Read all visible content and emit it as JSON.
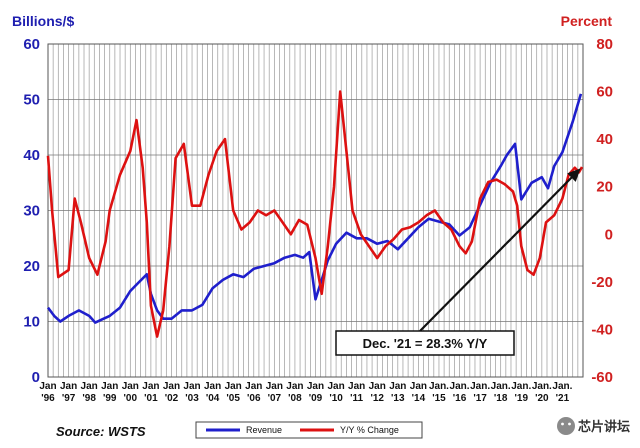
{
  "chart_data": {
    "type": "line",
    "title": "",
    "ylabel_left": "Billions/$",
    "ylabel_right": "Percent",
    "ylim_left": [
      0,
      60
    ],
    "ylim_right": [
      -60,
      80
    ],
    "yticks_left": [
      0,
      10,
      20,
      30,
      40,
      50,
      60
    ],
    "yticks_right": [
      -60,
      -40,
      -20,
      0,
      20,
      40,
      60,
      80
    ],
    "x_range": [
      1996,
      2022
    ],
    "xtick_labels": [
      {
        "top": "Jan",
        "bottom": "'96"
      },
      {
        "top": "Jan",
        "bottom": "'97"
      },
      {
        "top": "Jan",
        "bottom": "'98"
      },
      {
        "top": "Jan",
        "bottom": "'99"
      },
      {
        "top": "Jan",
        "bottom": "'00"
      },
      {
        "top": "Jan",
        "bottom": "'01"
      },
      {
        "top": "Jan",
        "bottom": "'02"
      },
      {
        "top": "Jan",
        "bottom": "'03"
      },
      {
        "top": "Jan",
        "bottom": "'04"
      },
      {
        "top": "Jan",
        "bottom": "'05"
      },
      {
        "top": "Jan",
        "bottom": "'06"
      },
      {
        "top": "Jan",
        "bottom": "'07"
      },
      {
        "top": "Jan",
        "bottom": "'08"
      },
      {
        "top": "Jan",
        "bottom": "'09"
      },
      {
        "top": "Jan",
        "bottom": "'10"
      },
      {
        "top": "Jan",
        "bottom": "'11"
      },
      {
        "top": "Jan",
        "bottom": "'12"
      },
      {
        "top": "Jan",
        "bottom": "'13"
      },
      {
        "top": "Jan",
        "bottom": "'14"
      },
      {
        "top": "Jan.",
        "bottom": "'15"
      },
      {
        "top": "Jan.",
        "bottom": "'16"
      },
      {
        "top": "Jan.",
        "bottom": "'17"
      },
      {
        "top": "Jan.",
        "bottom": "'18"
      },
      {
        "top": "Jan.",
        "bottom": "'19"
      },
      {
        "top": "Jan.",
        "bottom": "'20"
      },
      {
        "top": "Jan.",
        "bottom": "'21"
      }
    ],
    "grid": true,
    "series": [
      {
        "name": "Revenue",
        "axis": "left",
        "color": "#1f1fcc",
        "x": [
          1996.0,
          1996.3,
          1996.6,
          1997.0,
          1997.5,
          1998.0,
          1998.3,
          1998.7,
          1999.0,
          1999.5,
          2000.0,
          2000.4,
          2000.8,
          2001.0,
          2001.3,
          2001.6,
          2002.0,
          2002.5,
          2003.0,
          2003.5,
          2004.0,
          2004.5,
          2005.0,
          2005.5,
          2006.0,
          2006.5,
          2007.0,
          2007.5,
          2008.0,
          2008.4,
          2008.7,
          2009.0,
          2009.3,
          2009.6,
          2010.0,
          2010.5,
          2011.0,
          2011.5,
          2012.0,
          2012.5,
          2013.0,
          2013.5,
          2014.0,
          2014.5,
          2015.0,
          2015.5,
          2016.0,
          2016.5,
          2017.0,
          2017.5,
          2018.0,
          2018.3,
          2018.7,
          2019.0,
          2019.5,
          2020.0,
          2020.3,
          2020.6,
          2021.0,
          2021.5,
          2021.9
        ],
        "values": [
          12.5,
          11.0,
          10.0,
          11.0,
          12.0,
          11.0,
          9.8,
          10.5,
          11.0,
          12.5,
          15.5,
          17.0,
          18.5,
          15.0,
          12.0,
          10.5,
          10.5,
          12.0,
          12.0,
          13.0,
          16.0,
          17.5,
          18.5,
          18.0,
          19.5,
          20.0,
          20.5,
          21.5,
          22.0,
          21.5,
          22.5,
          14.0,
          17.5,
          21.0,
          24.0,
          26.0,
          25.0,
          25.0,
          24.0,
          24.5,
          23.0,
          25.0,
          27.0,
          28.5,
          28.0,
          27.5,
          25.5,
          27.0,
          31.0,
          35.0,
          38.0,
          40.0,
          42.0,
          32.0,
          35.0,
          36.0,
          34.0,
          38.0,
          40.5,
          46.0,
          51.0
        ]
      },
      {
        "name": "Y/Y % Change",
        "axis": "right",
        "color": "#dd1111",
        "x": [
          1996.0,
          1996.2,
          1996.5,
          1997.0,
          1997.3,
          1997.6,
          1998.0,
          1998.4,
          1998.8,
          1999.0,
          1999.5,
          2000.0,
          2000.3,
          2000.6,
          2000.8,
          2001.0,
          2001.3,
          2001.6,
          2001.9,
          2002.2,
          2002.6,
          2003.0,
          2003.4,
          2003.8,
          2004.2,
          2004.6,
          2005.0,
          2005.4,
          2005.8,
          2006.2,
          2006.6,
          2007.0,
          2007.4,
          2007.8,
          2008.2,
          2008.6,
          2009.0,
          2009.3,
          2009.6,
          2009.9,
          2010.2,
          2010.5,
          2010.8,
          2011.2,
          2011.6,
          2012.0,
          2012.4,
          2012.8,
          2013.2,
          2013.6,
          2014.0,
          2014.4,
          2014.8,
          2015.2,
          2015.6,
          2016.0,
          2016.3,
          2016.6,
          2017.0,
          2017.4,
          2017.8,
          2018.2,
          2018.6,
          2018.8,
          2019.0,
          2019.3,
          2019.6,
          2019.9,
          2020.2,
          2020.6,
          2021.0,
          2021.3,
          2021.6,
          2021.8,
          2021.95
        ],
        "values": [
          33.0,
          10.0,
          -18.0,
          -15.0,
          15.0,
          5.0,
          -10.0,
          -17.0,
          -3.0,
          10.0,
          25.0,
          35.0,
          48.0,
          28.0,
          5.0,
          -30.0,
          -43.0,
          -32.0,
          -5.0,
          32.0,
          38.0,
          12.0,
          12.0,
          25.0,
          35.0,
          40.0,
          10.0,
          2.0,
          5.0,
          10.0,
          8.0,
          10.0,
          5.0,
          0.0,
          6.0,
          4.0,
          -10.0,
          -25.0,
          -5.0,
          20.0,
          60.0,
          35.0,
          10.0,
          0.0,
          -5.0,
          -10.0,
          -5.0,
          -2.0,
          2.0,
          3.0,
          5.0,
          8.0,
          10.0,
          5.0,
          2.0,
          -5.0,
          -8.0,
          -3.0,
          15.0,
          22.0,
          23.0,
          21.0,
          18.0,
          12.0,
          -5.0,
          -15.0,
          -17.0,
          -10.0,
          5.0,
          8.0,
          15.0,
          25.0,
          28.0,
          26.0,
          28.3
        ]
      }
    ],
    "legend": {
      "position": "bottom-center",
      "entries": [
        "Revenue",
        "Y/Y % Change"
      ]
    },
    "annotations": [
      {
        "text": "Dec. '21 = 28.3% Y/Y",
        "points_to": {
          "x": 2021.95,
          "y": 28.3,
          "axis": "right"
        }
      }
    ],
    "source": "Source: WSTS"
  },
  "watermark": {
    "text": "芯片讲坛"
  },
  "colors": {
    "left_axis": "#1f1fb0",
    "right_axis": "#d02020",
    "grid": "#9a9a9a",
    "annotation_border": "#111111"
  }
}
